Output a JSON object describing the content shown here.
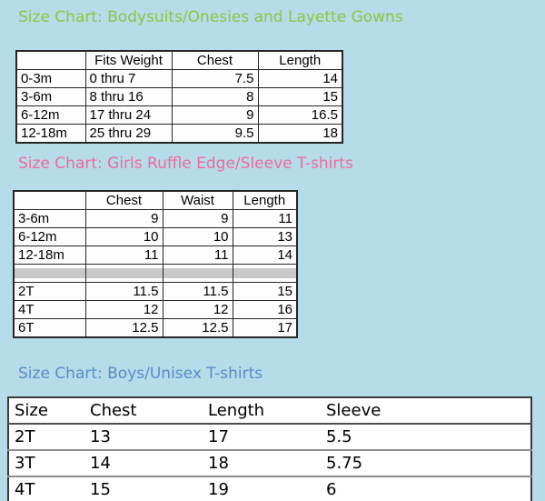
{
  "colors": {
    "page_background": "#b5dce8",
    "table_background": "#fdfdfd",
    "grid_border": "#262626",
    "separator_row_fill": "#c8c8c8",
    "heading_green": "#8dc63f",
    "heading_pink": "#ef6a9f",
    "heading_blue": "#5b8dc8"
  },
  "sections": [
    {
      "heading": "Size Chart: Bodysuits/Onesies and Layette Gowns",
      "table": {
        "columns": [
          "",
          "Fits Weight",
          "Chest",
          "Length"
        ],
        "rows": [
          [
            "0-3m",
            "0 thru 7",
            "7.5",
            "14"
          ],
          [
            "3-6m",
            "8 thru 16",
            "8",
            "15"
          ],
          [
            "6-12m",
            "17 thru 24",
            "9",
            "16.5"
          ],
          [
            "12-18m",
            "25 thru 29",
            "9.5",
            "18"
          ]
        ]
      }
    },
    {
      "heading": "Size Chart: Girls Ruffle Edge/Sleeve T-shirts",
      "table": {
        "columns": [
          "",
          "Chest",
          "Waist",
          "Length"
        ],
        "rows_infant": [
          [
            "3-6m",
            "9",
            "9",
            "11"
          ],
          [
            "6-12m",
            "10",
            "10",
            "13"
          ],
          [
            "12-18m",
            "11",
            "11",
            "14"
          ]
        ],
        "separator_row": [
          "",
          "",
          "",
          ""
        ],
        "rows_toddler": [
          [
            "2T",
            "11.5",
            "11.5",
            "15"
          ],
          [
            "4T",
            "12",
            "12",
            "16"
          ],
          [
            "6T",
            "12.5",
            "12.5",
            "17"
          ]
        ]
      }
    },
    {
      "heading": "Size Chart: Boys/Unisex T-shirts",
      "table": {
        "columns": [
          "Size",
          "Chest",
          "Length",
          "Sleeve"
        ],
        "rows": [
          [
            "2T",
            "13",
            "17",
            "5.5"
          ],
          [
            "3T",
            "14",
            "18",
            "5.75"
          ],
          [
            "4T",
            "15",
            "19",
            "6"
          ]
        ]
      }
    }
  ]
}
